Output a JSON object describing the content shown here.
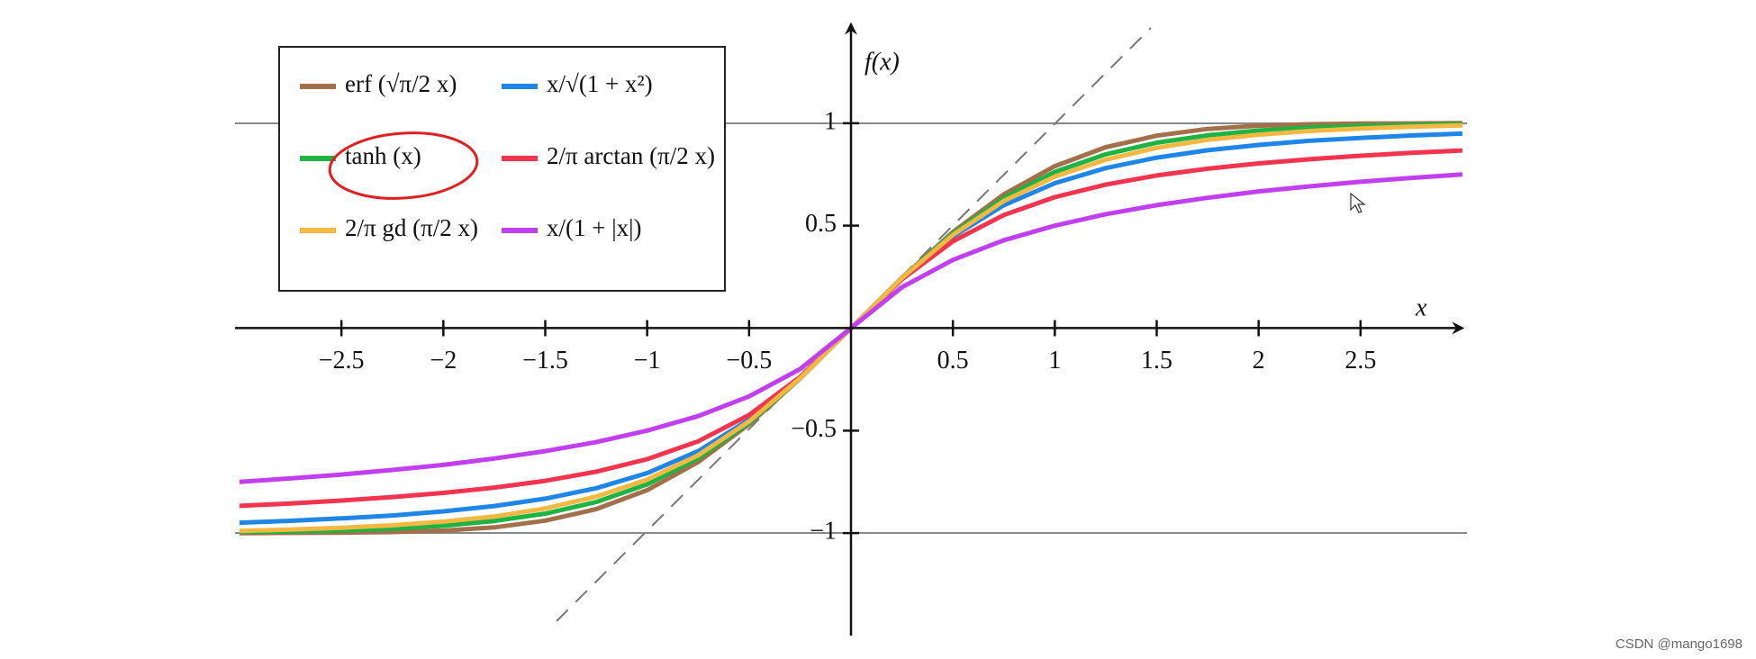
{
  "chart_data": {
    "type": "line",
    "x_label": "x",
    "y_label": "f(x)",
    "watermark": "CSDN @mango1698",
    "x": [
      -3,
      -2.75,
      -2.5,
      -2.25,
      -2,
      -1.75,
      -1.5,
      -1.25,
      -1,
      -0.75,
      -0.5,
      -0.25,
      0,
      0.25,
      0.5,
      0.75,
      1,
      1.25,
      1.5,
      1.75,
      2,
      2.25,
      2.5,
      2.75,
      3
    ],
    "series": [
      {
        "name": "erf (√π/2 x)",
        "color": "#a3704b",
        "values": [
          -1.0,
          -0.999,
          -0.998,
          -0.995,
          -0.988,
          -0.972,
          -0.939,
          -0.883,
          -0.79,
          -0.653,
          -0.469,
          -0.246,
          0,
          0.246,
          0.469,
          0.653,
          0.79,
          0.883,
          0.939,
          0.972,
          0.988,
          0.995,
          0.998,
          0.999,
          1.0
        ]
      },
      {
        "name": "x/√(1 + x²)",
        "color": "#1f86e8",
        "values": [
          -0.949,
          -0.94,
          -0.928,
          -0.914,
          -0.894,
          -0.868,
          -0.832,
          -0.781,
          -0.707,
          -0.6,
          -0.447,
          -0.243,
          0,
          0.243,
          0.447,
          0.6,
          0.707,
          0.781,
          0.832,
          0.868,
          0.894,
          0.914,
          0.928,
          0.94,
          0.949
        ]
      },
      {
        "name": "tanh (x)",
        "color": "#1fb344",
        "values": [
          -0.995,
          -0.992,
          -0.987,
          -0.978,
          -0.964,
          -0.941,
          -0.905,
          -0.848,
          -0.762,
          -0.635,
          -0.462,
          -0.245,
          0,
          0.245,
          0.462,
          0.635,
          0.762,
          0.848,
          0.905,
          0.941,
          0.964,
          0.978,
          0.987,
          0.992,
          0.995
        ]
      },
      {
        "name": "2/π arctan (π/2 x)",
        "color": "#f2344f",
        "values": [
          -0.867,
          -0.855,
          -0.841,
          -0.824,
          -0.804,
          -0.778,
          -0.745,
          -0.7,
          -0.639,
          -0.552,
          -0.424,
          -0.238,
          0,
          0.238,
          0.424,
          0.552,
          0.639,
          0.7,
          0.745,
          0.778,
          0.804,
          0.824,
          0.841,
          0.855,
          0.867
        ]
      },
      {
        "name": "2/π gd (π/2 x)",
        "color": "#f2b842",
        "values": [
          -0.989,
          -0.983,
          -0.974,
          -0.962,
          -0.944,
          -0.919,
          -0.88,
          -0.822,
          -0.739,
          -0.62,
          -0.455,
          -0.244,
          0,
          0.244,
          0.455,
          0.62,
          0.739,
          0.822,
          0.88,
          0.919,
          0.944,
          0.962,
          0.974,
          0.983,
          0.989
        ]
      },
      {
        "name": "x/(1 + |x|)",
        "color": "#c23ff0",
        "values": [
          -0.75,
          -0.733,
          -0.714,
          -0.692,
          -0.667,
          -0.636,
          -0.6,
          -0.556,
          -0.5,
          -0.429,
          -0.333,
          -0.2,
          0,
          0.2,
          0.333,
          0.429,
          0.5,
          0.556,
          0.6,
          0.636,
          0.667,
          0.692,
          0.714,
          0.733,
          0.75
        ]
      }
    ],
    "xlim": [
      -3,
      3
    ],
    "ylim": [
      -1.5,
      1.5
    ],
    "xticks": [
      {
        "value": -2.5,
        "label": "−2.5"
      },
      {
        "value": -2,
        "label": "−2"
      },
      {
        "value": -1.5,
        "label": "−1.5"
      },
      {
        "value": -1,
        "label": "−1"
      },
      {
        "value": -0.5,
        "label": "−0.5"
      },
      0.5,
      1,
      1.5,
      2,
      2.5
    ],
    "yticks": [
      1,
      0.5,
      {
        "value": -0.5,
        "label": "−0.5"
      },
      {
        "value": -1,
        "label": "−1"
      }
    ],
    "legend": "upper left"
  }
}
